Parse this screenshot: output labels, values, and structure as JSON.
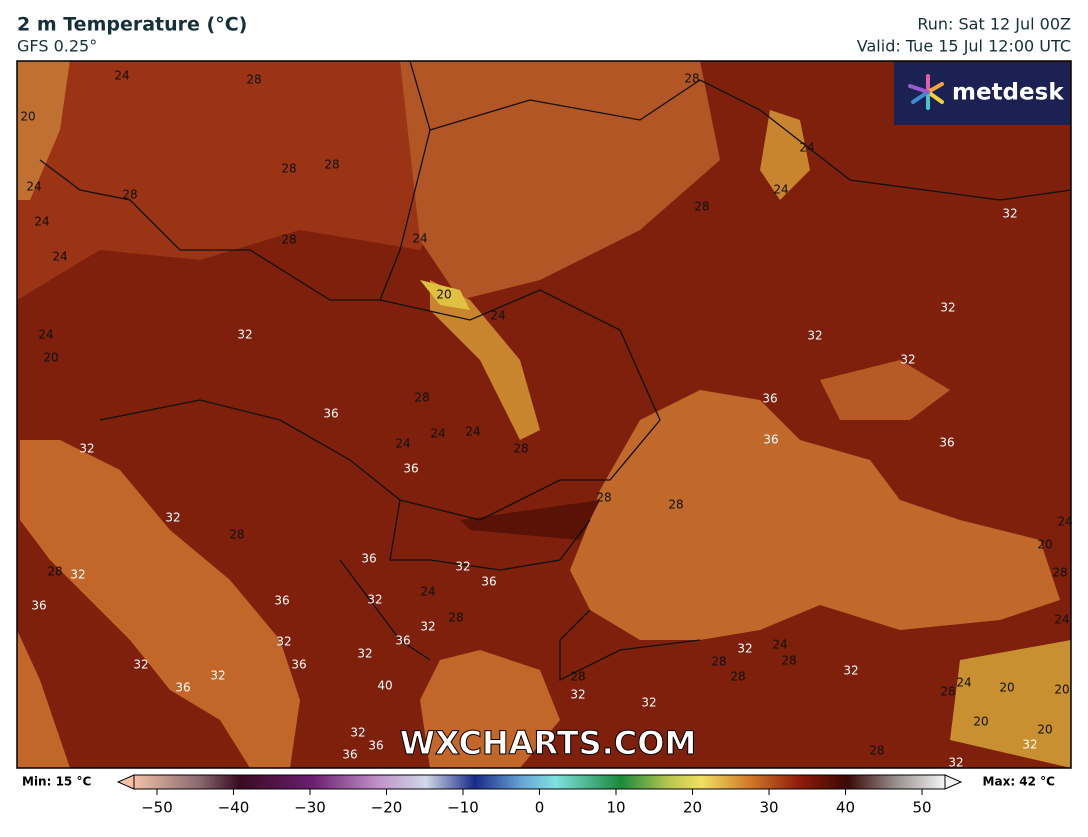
{
  "header": {
    "title": "2 m Temperature (°C)",
    "subtitle": "GFS 0.25°",
    "run": "Run: Sat 12 Jul 00Z",
    "valid": "Valid: Tue 15 Jul 12:00 UTC"
  },
  "logo": "metdesk",
  "watermark": "WXCHARTS.COM",
  "map": {
    "contour_labels": [
      24,
      28,
      20,
      28,
      28,
      28,
      24,
      24,
      24,
      28,
      24,
      20,
      24,
      32,
      24,
      20,
      28,
      36,
      24,
      24,
      24,
      28,
      36,
      32,
      32,
      28,
      28,
      32,
      36,
      36,
      32,
      36,
      32,
      24,
      32,
      28,
      36,
      36,
      32,
      32,
      36,
      32,
      32,
      36,
      40,
      32,
      36,
      36,
      28,
      24,
      24,
      28,
      32,
      32,
      32,
      32,
      36,
      36,
      36,
      28,
      28,
      32,
      24,
      28,
      28,
      28,
      28,
      32,
      32,
      32,
      24,
      28,
      20,
      20,
      20,
      20,
      32,
      28,
      32,
      20,
      28,
      24,
      24
    ]
  },
  "colorbar": {
    "min_label": "Min: 15 °C",
    "max_label": "Max: 42 °C",
    "xlim": [
      -53,
      53
    ],
    "xticks": [
      {
        "value": -50,
        "label": "−50"
      },
      {
        "value": -40,
        "label": "−40"
      },
      {
        "value": -30,
        "label": "−30"
      },
      {
        "value": -20,
        "label": "−20"
      },
      {
        "value": -10,
        "label": "−10"
      },
      0,
      10,
      20,
      30,
      40,
      50
    ]
  }
}
